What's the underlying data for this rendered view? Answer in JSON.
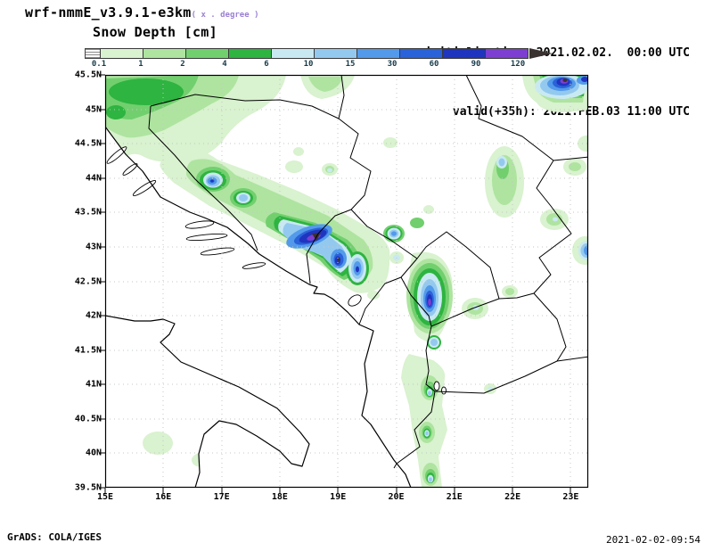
{
  "header": {
    "model_title": "wrf-nmmE_v3.9.1-e3km",
    "grid_note": "( x . degree )",
    "field_title": "Snow Depth [cm]",
    "init_line": "initialisation: 2021.02.02.  00:00 UTC",
    "valid_line": "valid(+35h): 2021.FEB.03 11:00 UTC"
  },
  "footer": {
    "left": "GrADS: COLA/IGES",
    "right": "2021-02-02-09:54"
  },
  "chart_data": {
    "type": "heatmap",
    "subtype": "filled-contour-geographic-map",
    "title": "Snow Depth [cm]",
    "model": "wrf-nmmE_v3.9.1-e3km",
    "initialisation": "2021.02.02. 00:00 UTC",
    "valid": "2021.FEB.03 11:00 UTC",
    "lead_hours": 35,
    "lon_range": [
      15,
      23.3
    ],
    "lat_range": [
      39.5,
      45.5
    ],
    "grid": "dashed graticule, 1 deg lon x 0.5 deg lat",
    "xticks": [
      {
        "value": 15,
        "label": "15E"
      },
      {
        "value": 16,
        "label": "16E"
      },
      {
        "value": 17,
        "label": "17E"
      },
      {
        "value": 18,
        "label": "18E"
      },
      {
        "value": 19,
        "label": "19E"
      },
      {
        "value": 20,
        "label": "20E"
      },
      {
        "value": 21,
        "label": "21E"
      },
      {
        "value": 22,
        "label": "22E"
      },
      {
        "value": 23,
        "label": "23E"
      }
    ],
    "yticks": [
      {
        "value": 45.5,
        "label": "45.5N"
      },
      {
        "value": 45,
        "label": "45N"
      },
      {
        "value": 44.5,
        "label": "44.5N"
      },
      {
        "value": 44,
        "label": "44N"
      },
      {
        "value": 43.5,
        "label": "43.5N"
      },
      {
        "value": 43,
        "label": "43N"
      },
      {
        "value": 42.5,
        "label": "42.5N"
      },
      {
        "value": 42,
        "label": "42N"
      },
      {
        "value": 41.5,
        "label": "41.5N"
      },
      {
        "value": 41,
        "label": "41N"
      },
      {
        "value": 40.5,
        "label": "40.5N"
      },
      {
        "value": 40,
        "label": "40N"
      },
      {
        "value": 39.5,
        "label": "39.5N"
      }
    ],
    "colorbar": {
      "units": "cm",
      "levels": [
        "0.1",
        "1",
        "2",
        "4",
        "6",
        "10",
        "15",
        "30",
        "60",
        "90",
        "120"
      ],
      "colors": [
        "#d9f2cf",
        "#aee4a0",
        "#72cf6e",
        "#2eb440",
        "#c9e9f2",
        "#94c9ef",
        "#539aea",
        "#2a62d9",
        "#1f35bf",
        "#7d3fd1"
      ],
      "over_color": "#3a3230",
      "under": "hatched box = below 0.1 cm",
      "label_color": "#163a4a"
    },
    "snow_areas": [
      {
        "area": "northwest corner (Croatia / NW Bosnia)",
        "lon": 15.7,
        "lat": 45.2,
        "max_cm": 6
      },
      {
        "area": "top-center patch",
        "lon": 18.8,
        "lat": 45.35,
        "max_cm": 2
      },
      {
        "area": "central Dinaric belt blob",
        "lon": 16.85,
        "lat": 43.95,
        "max_cm": 90
      },
      {
        "area": "Dinaric belt secondary blob",
        "lon": 17.35,
        "lat": 43.7,
        "max_cm": 15
      },
      {
        "area": "SE Bosnia / N Montenegro core",
        "lon": 18.6,
        "lat": 43.15,
        "max_cm": 125
      },
      {
        "area": "E Montenegro lobe",
        "lon": 19.0,
        "lat": 42.8,
        "max_cm": 95
      },
      {
        "area": "SW Serbia spot",
        "lon": 19.95,
        "lat": 43.2,
        "max_cm": 30
      },
      {
        "area": "Kosovo / N Albania streak",
        "lon": 20.55,
        "lat": 42.25,
        "max_cm": 120
      },
      {
        "area": "central Serbia blob",
        "lon": 21.8,
        "lat": 43.95,
        "max_cm": 15
      },
      {
        "area": "top-right blob (S Carpathians)",
        "lon": 22.9,
        "lat": 45.35,
        "max_cm": 125
      },
      {
        "area": "right-edge blob near 43N",
        "lon": 23.25,
        "lat": 42.95,
        "max_cm": 30
      },
      {
        "area": "S Albania / Pindus chain",
        "lon": 20.55,
        "lat": 40.3,
        "max_cm": 15
      },
      {
        "area": "S Italy spots",
        "lon": 16.2,
        "lat": 40.1,
        "max_cm": 1
      }
    ]
  }
}
